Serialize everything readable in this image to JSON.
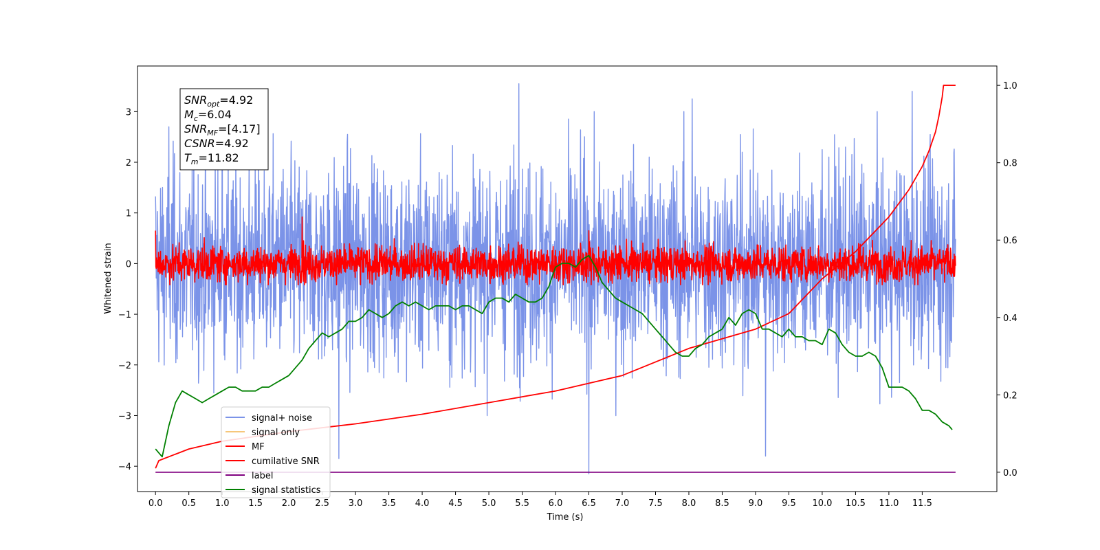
{
  "chart_data": {
    "type": "line",
    "xlabel": "Time (s)",
    "ylabel": "Whitened strain",
    "xlim": [
      -0.27,
      12.62
    ],
    "ylim": [
      -4.5,
      3.9
    ],
    "y2lim": [
      -0.05,
      1.05
    ],
    "x_ticks": [
      "0.0",
      "0.5",
      "1.0",
      "1.5",
      "2.0",
      "2.5",
      "3.0",
      "3.5",
      "4.0",
      "4.5",
      "5.0",
      "5.5",
      "6.0",
      "6.5",
      "7.0",
      "7.5",
      "8.0",
      "8.5",
      "9.0",
      "9.5",
      "10.0",
      "10.5",
      "11.0",
      "11.5"
    ],
    "y_ticks": [
      "3",
      "2",
      "1",
      "0",
      "−1",
      "−2",
      "−3",
      "−4"
    ],
    "y2_ticks": [
      "1.0",
      "0.8",
      "0.6",
      "0.4",
      "0.2",
      "0.0"
    ],
    "annotations": [
      {
        "symbol": "SNR",
        "sub": "opt",
        "value": "=4.92"
      },
      {
        "symbol": "M",
        "sub": "c",
        "value": "=6.04"
      },
      {
        "symbol": "SNR",
        "sub": "MF",
        "value": "=[4.17]"
      },
      {
        "symbol": "CSNR",
        "sub": "",
        "value": "=4.92"
      },
      {
        "symbol": "T",
        "sub": "m",
        "value": "=11.82"
      }
    ],
    "legend_position": "lower-left",
    "legend": [
      {
        "name": "signal+ noise",
        "color": "#7b93e8"
      },
      {
        "name": "signal only",
        "color": "#f6c77a"
      },
      {
        "name": "MF",
        "color": "#ff0000"
      },
      {
        "name": "cumilative SNR",
        "color": "#ff0000"
      },
      {
        "name": "label",
        "color": "#800080"
      },
      {
        "name": "signal statistics",
        "color": "#008000"
      }
    ],
    "series": [
      {
        "name": "signal+ noise",
        "axis": "left",
        "color": "#7b93e8",
        "duration": 12.0,
        "noise_sigma": 1.0,
        "notable_points": [
          [
            0.2,
            2.7
          ],
          [
            1.0,
            3.3
          ],
          [
            5.45,
            3.55
          ],
          [
            6.5,
            -4.15
          ],
          [
            2.75,
            -3.85
          ],
          [
            9.15,
            -3.8
          ],
          [
            11.35,
            3.4
          ],
          [
            8.05,
            3.25
          ]
        ]
      },
      {
        "name": "MF",
        "axis": "left",
        "color": "#ff0000",
        "duration": 12.0,
        "noise_sigma": 0.18,
        "notable_points": [
          [
            0.0,
            0.65
          ],
          [
            2.2,
            0.92
          ],
          [
            6.5,
            0.65
          ]
        ]
      },
      {
        "name": "cumilative SNR",
        "axis": "right",
        "x": [
          0,
          0.05,
          0.5,
          1.0,
          2.0,
          3.0,
          4.0,
          5.0,
          6.0,
          7.0,
          8.0,
          9.0,
          9.5,
          10.0,
          10.5,
          11.0,
          11.3,
          11.5,
          11.6,
          11.7,
          11.75,
          11.8,
          11.82,
          12.0
        ],
        "y": [
          0.01,
          0.03,
          0.06,
          0.08,
          0.105,
          0.125,
          0.15,
          0.18,
          0.21,
          0.25,
          0.32,
          0.37,
          0.41,
          0.5,
          0.57,
          0.66,
          0.73,
          0.79,
          0.83,
          0.88,
          0.92,
          0.97,
          1.0,
          1.0
        ]
      },
      {
        "name": "label",
        "axis": "right",
        "x": [
          0,
          12.0
        ],
        "y": [
          0.0,
          0.0
        ]
      },
      {
        "name": "signal statistics",
        "axis": "right",
        "x": [
          0,
          0.1,
          0.2,
          0.3,
          0.4,
          0.5,
          0.6,
          0.7,
          0.8,
          0.9,
          1.0,
          1.1,
          1.2,
          1.3,
          1.4,
          1.5,
          1.6,
          1.7,
          1.8,
          1.9,
          2.0,
          2.1,
          2.2,
          2.3,
          2.4,
          2.5,
          2.6,
          2.7,
          2.8,
          2.9,
          3.0,
          3.1,
          3.2,
          3.3,
          3.4,
          3.5,
          3.6,
          3.7,
          3.8,
          3.9,
          4.0,
          4.1,
          4.2,
          4.3,
          4.4,
          4.5,
          4.6,
          4.7,
          4.8,
          4.9,
          5.0,
          5.1,
          5.2,
          5.3,
          5.4,
          5.5,
          5.6,
          5.7,
          5.8,
          5.9,
          6.0,
          6.1,
          6.2,
          6.3,
          6.4,
          6.5,
          6.6,
          6.7,
          6.8,
          6.9,
          7.0,
          7.1,
          7.2,
          7.3,
          7.4,
          7.5,
          7.6,
          7.7,
          7.8,
          7.9,
          8.0,
          8.1,
          8.2,
          8.3,
          8.4,
          8.5,
          8.6,
          8.7,
          8.8,
          8.9,
          9.0,
          9.1,
          9.2,
          9.3,
          9.4,
          9.5,
          9.6,
          9.7,
          9.8,
          9.9,
          10.0,
          10.1,
          10.2,
          10.3,
          10.4,
          10.5,
          10.6,
          10.7,
          10.8,
          10.9,
          11.0,
          11.1,
          11.2,
          11.3,
          11.4,
          11.5,
          11.6,
          11.7,
          11.8,
          11.9,
          11.95
        ],
        "y": [
          0.06,
          0.04,
          0.12,
          0.18,
          0.21,
          0.2,
          0.19,
          0.18,
          0.19,
          0.2,
          0.21,
          0.22,
          0.22,
          0.21,
          0.21,
          0.21,
          0.22,
          0.22,
          0.23,
          0.24,
          0.25,
          0.27,
          0.29,
          0.32,
          0.34,
          0.36,
          0.35,
          0.36,
          0.37,
          0.39,
          0.39,
          0.4,
          0.42,
          0.41,
          0.4,
          0.41,
          0.43,
          0.44,
          0.43,
          0.44,
          0.43,
          0.42,
          0.43,
          0.43,
          0.43,
          0.42,
          0.43,
          0.43,
          0.42,
          0.41,
          0.44,
          0.45,
          0.45,
          0.44,
          0.46,
          0.45,
          0.44,
          0.44,
          0.45,
          0.48,
          0.53,
          0.54,
          0.54,
          0.53,
          0.55,
          0.56,
          0.53,
          0.49,
          0.47,
          0.45,
          0.44,
          0.43,
          0.42,
          0.41,
          0.39,
          0.37,
          0.35,
          0.33,
          0.31,
          0.3,
          0.3,
          0.32,
          0.33,
          0.35,
          0.36,
          0.37,
          0.4,
          0.38,
          0.41,
          0.42,
          0.41,
          0.37,
          0.37,
          0.36,
          0.35,
          0.37,
          0.35,
          0.35,
          0.34,
          0.34,
          0.33,
          0.37,
          0.36,
          0.33,
          0.31,
          0.3,
          0.3,
          0.31,
          0.3,
          0.27,
          0.22,
          0.22,
          0.22,
          0.21,
          0.19,
          0.16,
          0.16,
          0.15,
          0.13,
          0.12,
          0.11
        ]
      }
    ]
  }
}
